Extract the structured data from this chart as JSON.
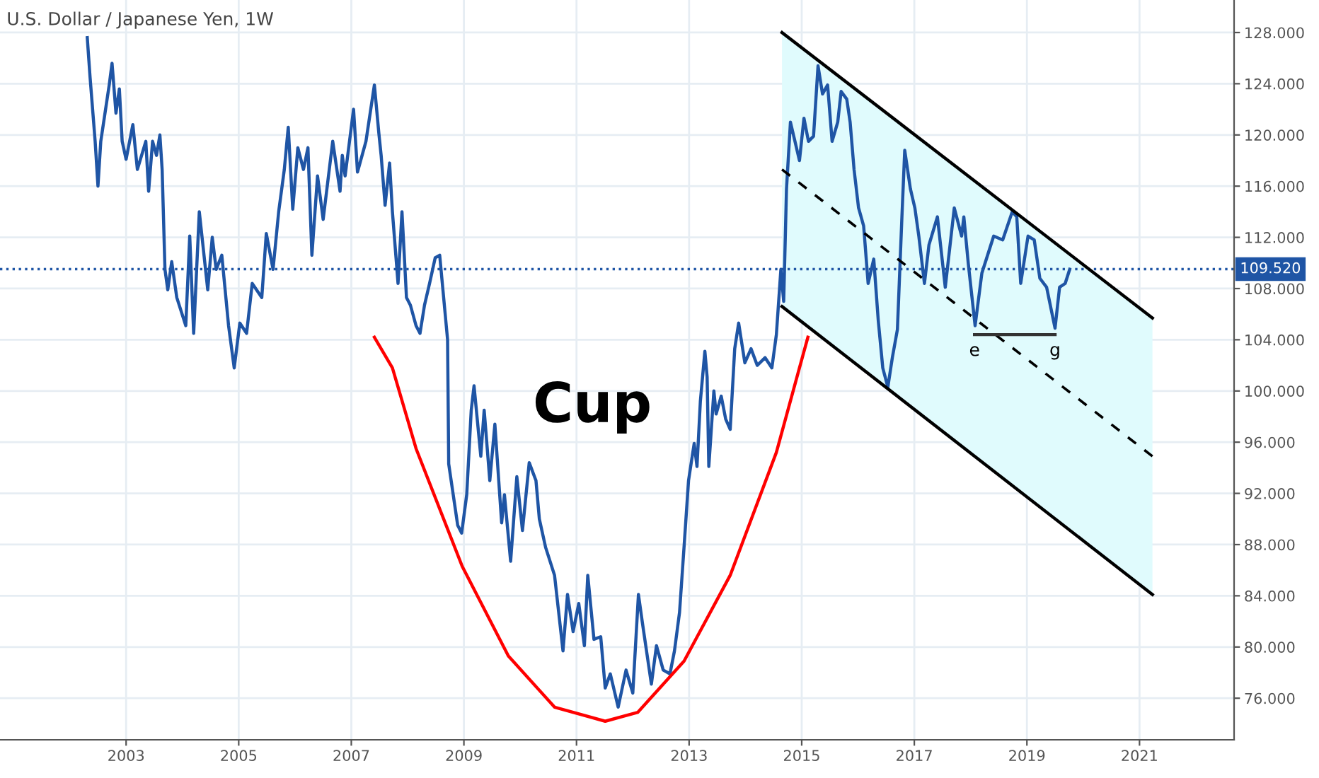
{
  "chart_data": {
    "type": "line",
    "title": "U.S. Dollar / Japanese Yen, 1W",
    "xlim": [
      2000.76,
      2022.68
    ],
    "ylim": [
      72.75,
      130.54
    ],
    "xticks": [
      2003,
      2005,
      2007,
      2009,
      2011,
      2013,
      2015,
      2017,
      2019,
      2021
    ],
    "yticks": [
      {
        "value": 76,
        "label": "76.000"
      },
      {
        "value": 80,
        "label": "80.000"
      },
      {
        "value": 84,
        "label": "84.000"
      },
      {
        "value": 88,
        "label": "88.000"
      },
      {
        "value": 92,
        "label": "92.000"
      },
      {
        "value": 96,
        "label": "96.000"
      },
      {
        "value": 100,
        "label": "100.000"
      },
      {
        "value": 104,
        "label": "104.000"
      },
      {
        "value": 108,
        "label": "108.000"
      },
      {
        "value": 112,
        "label": "112.000"
      },
      {
        "value": 116,
        "label": "116.000"
      },
      {
        "value": 120,
        "label": "120.000"
      },
      {
        "value": 124,
        "label": "124.000"
      },
      {
        "value": 128,
        "label": "128.000"
      }
    ],
    "grid": true,
    "legend": false,
    "marker": "none",
    "line_style": "solid",
    "series": [
      {
        "color": "#1f55a5",
        "x": [
          2002.31,
          2002.36,
          2002.45,
          2002.5,
          2002.55,
          2002.7,
          2002.75,
          2002.82,
          2002.88,
          2002.93,
          2003.0,
          2003.12,
          2003.2,
          2003.35,
          2003.4,
          2003.47,
          2003.54,
          2003.6,
          2003.64,
          2003.69,
          2003.74,
          2003.81,
          2003.9,
          2004.06,
          2004.13,
          2004.2,
          2004.3,
          2004.45,
          2004.53,
          2004.6,
          2004.7,
          2004.82,
          2004.92,
          2005.02,
          2005.14,
          2005.24,
          2005.41,
          2005.49,
          2005.61,
          2005.71,
          2005.81,
          2005.88,
          2005.96,
          2006.05,
          2006.15,
          2006.23,
          2006.3,
          2006.4,
          2006.5,
          2006.67,
          2006.8,
          2006.84,
          2006.89,
          2007.04,
          2007.11,
          2007.26,
          2007.41,
          2007.49,
          2007.53,
          2007.6,
          2007.68,
          2007.73,
          2007.83,
          2007.9,
          2007.98,
          2008.05,
          2008.15,
          2008.22,
          2008.3,
          2008.39,
          2008.49,
          2008.57,
          2008.64,
          2008.71,
          2008.73,
          2008.89,
          2008.96,
          2009.05,
          2009.13,
          2009.18,
          2009.3,
          2009.36,
          2009.46,
          2009.55,
          2009.67,
          2009.72,
          2009.83,
          2009.94,
          2010.04,
          2010.16,
          2010.28,
          2010.34,
          2010.45,
          2010.61,
          2010.76,
          2010.84,
          2010.94,
          2011.04,
          2011.14,
          2011.2,
          2011.31,
          2011.43,
          2011.51,
          2011.6,
          2011.74,
          2011.88,
          2012.0,
          2012.1,
          2012.17,
          2012.33,
          2012.42,
          2012.54,
          2012.66,
          2012.74,
          2012.83,
          2012.91,
          2012.99,
          2013.09,
          2013.14,
          2013.2,
          2013.28,
          2013.32,
          2013.35,
          2013.44,
          2013.48,
          2013.57,
          2013.65,
          2013.73,
          2013.81,
          2013.88,
          2013.99,
          2014.1,
          2014.21,
          2014.35,
          2014.47,
          2014.55,
          2014.63,
          2014.68,
          2014.73,
          2014.8,
          2014.88,
          2014.96,
          2015.04,
          2015.12,
          2015.21,
          2015.29,
          2015.37,
          2015.46,
          2015.54,
          2015.64,
          2015.7,
          2015.8,
          2015.86,
          2015.93,
          2016.01,
          2016.1,
          2016.18,
          2016.28,
          2016.36,
          2016.44,
          2016.53,
          2016.61,
          2016.7,
          2016.78,
          2016.83,
          2016.93,
          2017.01,
          2017.08,
          2017.18,
          2017.26,
          2017.41,
          2017.55,
          2017.71,
          2017.84,
          2017.88,
          2017.96,
          2018.08,
          2018.2,
          2018.41,
          2018.57,
          2018.74,
          2018.82,
          2018.89,
          2019.02,
          2019.13,
          2019.23,
          2019.35,
          2019.42,
          2019.5,
          2019.58,
          2019.68,
          2019.76
        ],
        "values": [
          127.6,
          124.5,
          119.5,
          116.0,
          119.5,
          123.9,
          125.6,
          121.7,
          123.6,
          119.5,
          118.1,
          120.8,
          117.3,
          119.5,
          115.6,
          119.5,
          118.4,
          120.0,
          117.3,
          109.5,
          107.9,
          110.1,
          107.3,
          105.1,
          112.1,
          104.5,
          114.0,
          107.9,
          112.0,
          109.5,
          110.6,
          105.1,
          101.8,
          105.3,
          104.5,
          108.4,
          107.3,
          112.3,
          109.5,
          114.0,
          117.3,
          120.6,
          114.2,
          119.0,
          117.3,
          119.0,
          110.6,
          116.8,
          113.4,
          119.5,
          115.6,
          118.4,
          116.8,
          122.0,
          117.1,
          119.5,
          123.9,
          120.1,
          118.4,
          114.5,
          117.8,
          114.0,
          108.4,
          114.0,
          107.3,
          106.7,
          105.1,
          104.5,
          106.7,
          108.4,
          110.4,
          110.6,
          107.3,
          104.0,
          94.3,
          89.5,
          88.9,
          91.9,
          98.5,
          100.4,
          94.9,
          98.5,
          93.0,
          97.4,
          89.7,
          91.9,
          86.7,
          93.3,
          89.1,
          94.4,
          93.0,
          90.0,
          87.8,
          85.6,
          79.7,
          84.1,
          81.2,
          83.4,
          80.1,
          85.6,
          80.6,
          80.8,
          76.8,
          77.9,
          75.3,
          78.2,
          76.4,
          84.1,
          81.9,
          77.1,
          80.1,
          78.2,
          77.9,
          79.7,
          82.7,
          87.8,
          93.0,
          95.9,
          94.1,
          99.2,
          103.1,
          101.1,
          94.1,
          100.0,
          98.2,
          99.6,
          97.8,
          97.0,
          103.3,
          105.3,
          102.2,
          103.3,
          102.0,
          102.6,
          101.8,
          104.4,
          109.5,
          107.0,
          115.8,
          121.0,
          119.5,
          118.0,
          121.3,
          119.5,
          119.9,
          125.4,
          123.2,
          123.9,
          119.5,
          121.0,
          123.4,
          122.8,
          121.0,
          117.3,
          114.3,
          112.9,
          108.4,
          110.3,
          105.5,
          101.8,
          100.3,
          102.6,
          104.8,
          113.6,
          118.8,
          115.8,
          114.3,
          112.1,
          108.4,
          111.4,
          113.6,
          108.1,
          114.3,
          112.1,
          113.6,
          109.9,
          105.1,
          109.2,
          112.1,
          111.8,
          114.0,
          113.6,
          108.4,
          112.1,
          111.8,
          108.8,
          108.1,
          106.6,
          104.9,
          108.1,
          108.4,
          109.5
        ]
      },
      {
        "color": "#ff0000",
        "x": [
          2007.41,
          2007.73,
          2008.15,
          2008.97,
          2009.79,
          2010.61,
          2011.51,
          2012.09,
          2012.91,
          2013.73,
          2014.55,
          2014.96,
          2015.11
        ],
        "values": [
          104.2,
          101.8,
          95.5,
          86.3,
          79.3,
          75.3,
          74.2,
          74.9,
          78.9,
          85.6,
          95.2,
          101.8,
          104.2
        ]
      },
      {
        "color": "#000000",
        "x": [
          2014.65,
          2021.23
        ],
        "values": [
          128.0,
          105.7
        ]
      },
      {
        "color": "#000000",
        "x": [
          2014.65,
          2021.23
        ],
        "values": [
          106.6,
          84.1
        ]
      },
      {
        "color": "#000000",
        "line_style": "dashed",
        "x": [
          2014.65,
          2021.23
        ],
        "values": [
          117.3,
          94.9
        ],
        "lower": [
          106.6,
          84.1
        ],
        "upper": [
          128.0,
          105.7
        ]
      },
      {
        "color": "#333333",
        "x": [
          2018.07,
          2019.5
        ],
        "values": [
          104.4,
          104.4
        ]
      }
    ],
    "ref_lines": [
      {
        "axis": "y",
        "value": 109.52,
        "label": "109.520",
        "color": "#1f55a5",
        "line_style": "dotted"
      }
    ],
    "annotations": [
      "Cup",
      "e",
      "g"
    ]
  }
}
